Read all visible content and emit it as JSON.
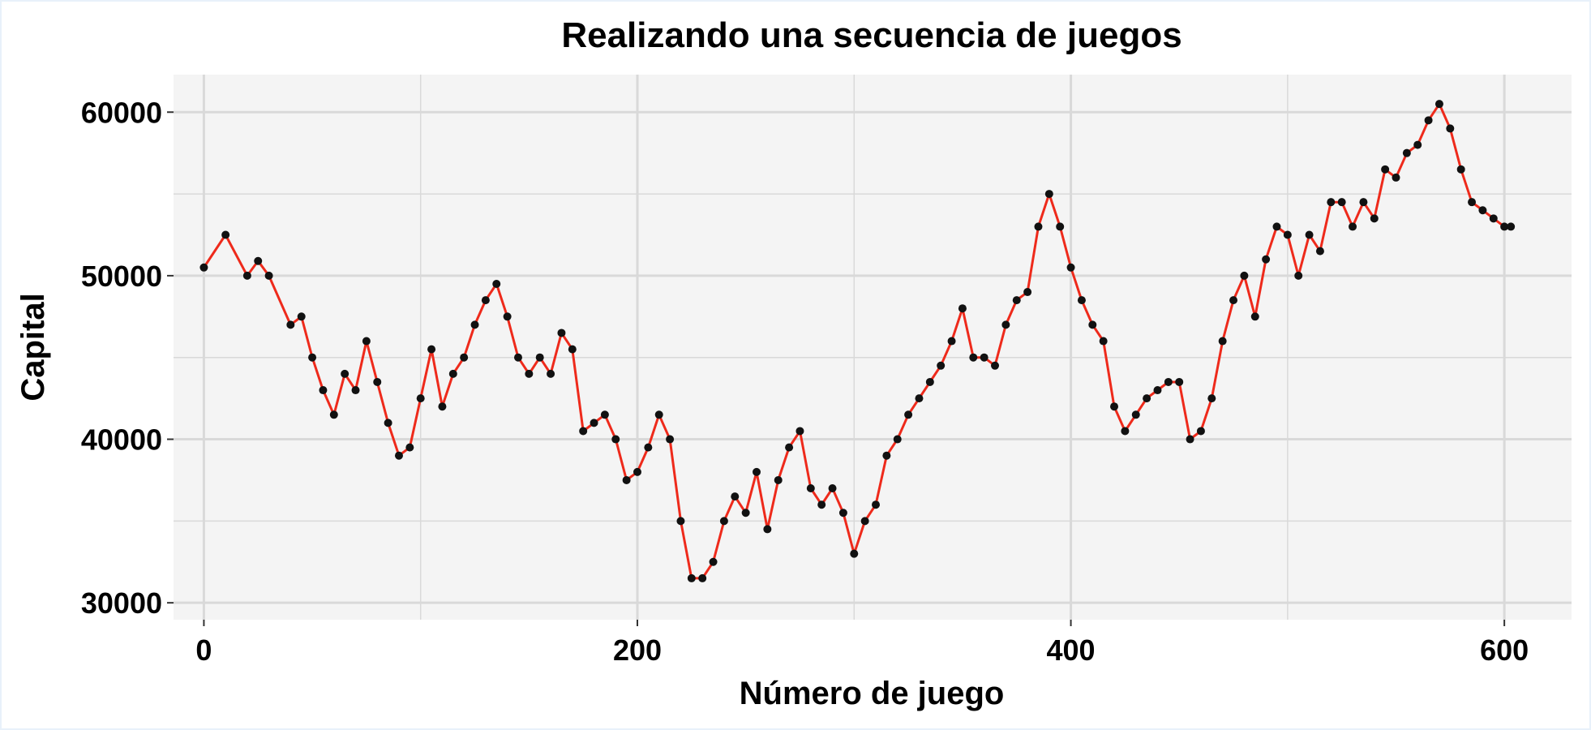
{
  "chart_data": {
    "type": "line",
    "title": "Realizando una secuencia de juegos",
    "xlabel": "Número de juego",
    "ylabel": "Capital",
    "xlim": [
      -14,
      631
    ],
    "ylim": [
      28967,
      62294
    ],
    "x_ticks": [
      0,
      200,
      400,
      600
    ],
    "y_ticks": [
      30000,
      40000,
      50000,
      60000
    ],
    "x_tick_labels": [
      "0",
      "200",
      "400",
      "600"
    ],
    "y_tick_labels": [
      "30000",
      "40000",
      "50000",
      "60000"
    ],
    "grid": true,
    "legend": "none",
    "colors": {
      "line": "#ee2a1b",
      "points": "#111111",
      "panel": "#f4f4f4",
      "grid": "#d9d9d9"
    },
    "series": [
      {
        "x": [
          0,
          10,
          20,
          25,
          30,
          40,
          45,
          50,
          55,
          60,
          65,
          70,
          75,
          80,
          85,
          90,
          95,
          100,
          105,
          110,
          115,
          120,
          125,
          130,
          135,
          140,
          145,
          150,
          155,
          160,
          165,
          170,
          175,
          180,
          185,
          190,
          195,
          200,
          205,
          210,
          215,
          220,
          225,
          230,
          235,
          240,
          245,
          250,
          255,
          260,
          265,
          270,
          275,
          280,
          285,
          290,
          295,
          300,
          305,
          310,
          315,
          320,
          325,
          330,
          335,
          340,
          345,
          350,
          355,
          360,
          365,
          370,
          375,
          380,
          385,
          390,
          395,
          400,
          405,
          410,
          415,
          420,
          425,
          430,
          435,
          440,
          445,
          450,
          455,
          460,
          465,
          470,
          475,
          480,
          485,
          490,
          495,
          500,
          505,
          510,
          515,
          520,
          525,
          530,
          535,
          540,
          545,
          550,
          555,
          560,
          565,
          570,
          575,
          580,
          585,
          590,
          595,
          600,
          603
        ],
        "y": [
          50500,
          52500,
          50000,
          50900,
          50000,
          47000,
          47500,
          45000,
          43000,
          41500,
          44000,
          43000,
          46000,
          43500,
          41000,
          39000,
          39500,
          42500,
          45500,
          42000,
          44000,
          45000,
          47000,
          48500,
          49500,
          47500,
          45000,
          44000,
          45000,
          44000,
          46500,
          45500,
          40500,
          41000,
          41500,
          40000,
          37500,
          38000,
          39500,
          41500,
          40000,
          35000,
          31500,
          31500,
          32500,
          35000,
          36500,
          35500,
          38000,
          34500,
          37500,
          39500,
          40500,
          37000,
          36000,
          37000,
          35500,
          33000,
          35000,
          36000,
          39000,
          40000,
          41500,
          42500,
          43500,
          44500,
          46000,
          48000,
          45000,
          45000,
          44500,
          47000,
          48500,
          49000,
          53000,
          55000,
          53000,
          50500,
          48500,
          47000,
          46000,
          42000,
          40500,
          41500,
          42500,
          43000,
          43500,
          43500,
          40000,
          40500,
          42500,
          46000,
          48500,
          50000,
          47500,
          51000,
          53000,
          52500,
          50000,
          52500,
          51500,
          54500,
          54500,
          53000,
          54500,
          53500,
          56500,
          56000,
          57500,
          58000,
          59500,
          60500,
          59000,
          56500,
          54500,
          54000,
          53500,
          53000,
          53000
        ]
      }
    ]
  }
}
